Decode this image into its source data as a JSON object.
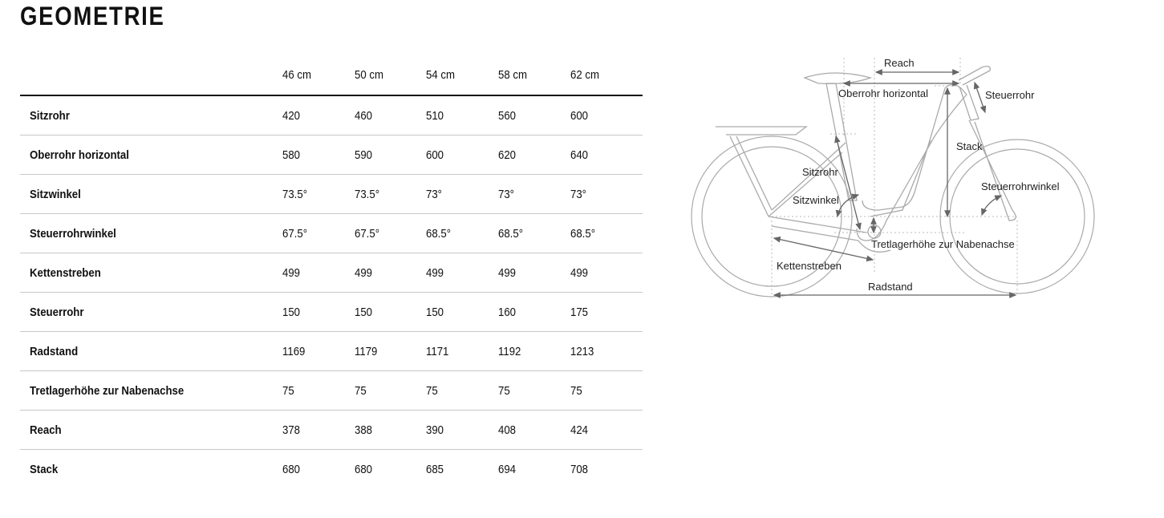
{
  "title": "GEOMETRIE",
  "table": {
    "columns": [
      "46 cm",
      "50 cm",
      "54 cm",
      "58 cm",
      "62 cm"
    ],
    "rows": [
      {
        "label": "Sitzrohr",
        "values": [
          "420",
          "460",
          "510",
          "560",
          "600"
        ]
      },
      {
        "label": "Oberrohr horizontal",
        "values": [
          "580",
          "590",
          "600",
          "620",
          "640"
        ]
      },
      {
        "label": "Sitzwinkel",
        "values": [
          "73.5°",
          "73.5°",
          "73°",
          "73°",
          "73°"
        ]
      },
      {
        "label": "Steuerrohrwinkel",
        "values": [
          "67.5°",
          "67.5°",
          "68.5°",
          "68.5°",
          "68.5°"
        ]
      },
      {
        "label": "Kettenstreben",
        "values": [
          "499",
          "499",
          "499",
          "499",
          "499"
        ]
      },
      {
        "label": "Steuerrohr",
        "values": [
          "150",
          "150",
          "150",
          "160",
          "175"
        ]
      },
      {
        "label": "Radstand",
        "values": [
          "1169",
          "1179",
          "1171",
          "1192",
          "1213"
        ]
      },
      {
        "label": "Tretlagerhöhe zur Nabenachse",
        "values": [
          "75",
          "75",
          "75",
          "75",
          "75"
        ]
      },
      {
        "label": "Reach",
        "values": [
          "378",
          "388",
          "390",
          "408",
          "424"
        ]
      },
      {
        "label": "Stack",
        "values": [
          "680",
          "680",
          "685",
          "694",
          "708"
        ]
      }
    ]
  },
  "diagram": {
    "labels": {
      "reach": "Reach",
      "oberrohr": "Oberrohr horizontal",
      "steuerrohr": "Steuerrohr",
      "stack": "Stack",
      "sitzrohr": "Sitzrohr",
      "sitzwinkel": "Sitzwinkel",
      "steuerrohrwinkel": "Steuerrohrwinkel",
      "tretlager": "Tretlagerhöhe zur Nabenachse",
      "kettenstreben": "Kettenstreben",
      "radstand": "Radstand"
    }
  }
}
